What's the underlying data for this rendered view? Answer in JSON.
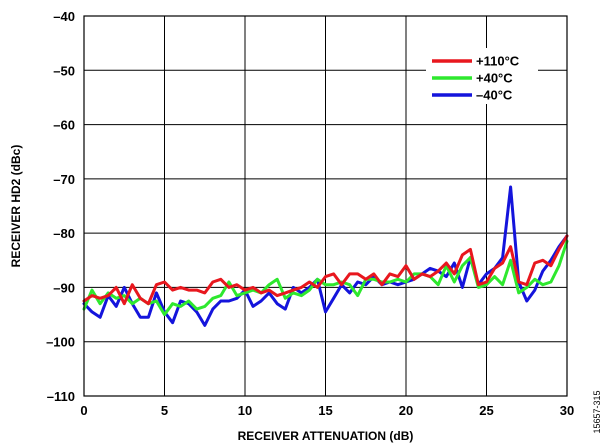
{
  "chart_data": {
    "type": "line",
    "xlabel": "RECEIVER ATTENUATION (dB)",
    "ylabel": "RECEIVER HD2 (dBc)",
    "xlim": [
      0,
      30
    ],
    "ylim": [
      -110,
      -40
    ],
    "x_ticks": [
      "0",
      "5",
      "10",
      "15",
      "20",
      "25",
      "30"
    ],
    "y_ticks": [
      "–40",
      "–50",
      "–60",
      "–70",
      "–80",
      "–90",
      "–100",
      "–110"
    ],
    "grid": true,
    "legend_position": "top-right",
    "side_note": "15657-315",
    "series": [
      {
        "name": "+110°C",
        "color": "#e8171e",
        "x": [
          0,
          0.5,
          1,
          1.5,
          2,
          2.5,
          3,
          3.5,
          4,
          4.5,
          5,
          5.5,
          6,
          6.5,
          7,
          7.5,
          8,
          8.5,
          9,
          9.5,
          10,
          10.5,
          11,
          11.5,
          12,
          12.5,
          13,
          13.5,
          14,
          14.5,
          15,
          15.5,
          16,
          16.5,
          17,
          17.5,
          18,
          18.5,
          19,
          19.5,
          20,
          20.5,
          21,
          21.5,
          22,
          22.5,
          23,
          23.5,
          24,
          24.5,
          25,
          25.5,
          26,
          26.5,
          27,
          27.5,
          28,
          28.5,
          29,
          29.5,
          30
        ],
        "y": [
          -92.5,
          -91.5,
          -92,
          -91.5,
          -90,
          -93,
          -89.5,
          -92,
          -93,
          -89.5,
          -89,
          -90.5,
          -90,
          -90.5,
          -90.5,
          -91,
          -89,
          -88.5,
          -90,
          -89.5,
          -90.5,
          -90,
          -91,
          -90.5,
          -91.5,
          -91,
          -90.5,
          -90,
          -89,
          -90,
          -88,
          -87.5,
          -89.5,
          -87.5,
          -87.5,
          -88.5,
          -87.5,
          -89.5,
          -87.5,
          -88,
          -86,
          -88.5,
          -87.5,
          -88,
          -87,
          -85.5,
          -87.5,
          -84,
          -83,
          -89.5,
          -89,
          -86.5,
          -85.5,
          -82.5,
          -89,
          -89.5,
          -85.5,
          -85,
          -86,
          -83,
          -80.5
        ]
      },
      {
        "name": "+40°C",
        "color": "#2ee82e",
        "x": [
          0,
          0.5,
          1,
          1.5,
          2,
          2.5,
          3,
          3.5,
          4,
          4.5,
          5,
          5.5,
          6,
          6.5,
          7,
          7.5,
          8,
          8.5,
          9,
          9.5,
          10,
          10.5,
          11,
          11.5,
          12,
          12.5,
          13,
          13.5,
          14,
          14.5,
          15,
          15.5,
          16,
          16.5,
          17,
          17.5,
          18,
          18.5,
          19,
          19.5,
          20,
          20.5,
          21,
          21.5,
          22,
          22.5,
          23,
          23.5,
          24,
          24.5,
          25,
          25.5,
          26,
          26.5,
          27,
          27.5,
          28,
          28.5,
          29,
          29.5,
          30
        ],
        "y": [
          -94,
          -90.5,
          -93,
          -91,
          -92,
          -91.5,
          -93,
          -92,
          -93,
          -92.5,
          -95,
          -93,
          -93.5,
          -92.5,
          -94,
          -93.5,
          -92,
          -91.5,
          -89,
          -91.5,
          -91,
          -90.5,
          -91,
          -89.5,
          -88.5,
          -92,
          -91,
          -91.5,
          -90.5,
          -88.5,
          -89.5,
          -89.5,
          -89,
          -89.5,
          -91.5,
          -88.5,
          -88.5,
          -89,
          -89,
          -88.5,
          -89,
          -87.5,
          -87.5,
          -88,
          -89.5,
          -86,
          -89,
          -86,
          -84.5,
          -90,
          -89.5,
          -88,
          -89.5,
          -85,
          -91,
          -90,
          -88.5,
          -89.5,
          -89,
          -86,
          -81.5
        ]
      },
      {
        "name": "–40°C",
        "color": "#1414dc",
        "x": [
          0,
          0.5,
          1,
          1.5,
          2,
          2.5,
          3,
          3.5,
          4,
          4.5,
          5,
          5.5,
          6,
          6.5,
          7,
          7.5,
          8,
          8.5,
          9,
          9.5,
          10,
          10.5,
          11,
          11.5,
          12,
          12.5,
          13,
          13.5,
          14,
          14.5,
          15,
          15.5,
          16,
          16.5,
          17,
          17.5,
          18,
          18.5,
          19,
          19.5,
          20,
          20.5,
          21,
          21.5,
          22,
          22.5,
          23,
          23.5,
          24,
          24.5,
          25,
          25.5,
          26,
          26.5,
          27,
          27.5,
          28,
          28.5,
          29,
          29.5,
          30
        ],
        "y": [
          -93,
          -94.5,
          -95.5,
          -91.5,
          -93.5,
          -90,
          -93,
          -95.5,
          -95.5,
          -91,
          -94.5,
          -96.5,
          -92.5,
          -93,
          -94.5,
          -97,
          -94,
          -92.5,
          -92.5,
          -92,
          -90.5,
          -93.5,
          -92.5,
          -91,
          -93,
          -94,
          -90,
          -91,
          -90,
          -88.5,
          -94.5,
          -92,
          -89.5,
          -91,
          -89,
          -89.5,
          -88,
          -89.5,
          -89,
          -89.5,
          -89,
          -88.5,
          -87.5,
          -86.5,
          -87,
          -88,
          -85.5,
          -90,
          -84.5,
          -89.5,
          -87.5,
          -86.5,
          -84.5,
          -71.5,
          -89,
          -92.5,
          -90.5,
          -87,
          -85,
          -82.5,
          -80.5
        ]
      }
    ]
  }
}
